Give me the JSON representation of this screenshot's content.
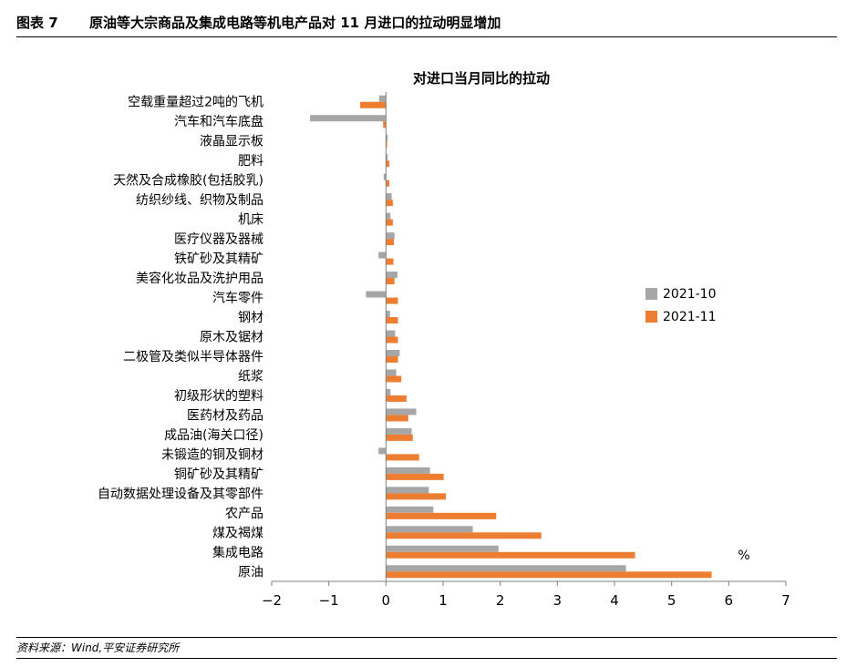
{
  "figure": {
    "number": "图表 7",
    "title": "原油等大宗商品及集成电路等机电产品对 11 月进口的拉动明显增加",
    "source": "资料来源：Wind,平安证券研究所"
  },
  "chart_data": {
    "type": "bar",
    "orientation": "horizontal",
    "title": "对进口当月同比的拉动",
    "unit_label": "%",
    "xlim": [
      -2,
      7
    ],
    "xticks": [
      -2,
      -1,
      0,
      1,
      2,
      3,
      4,
      5,
      6,
      7
    ],
    "xtick_labels": [
      "−2",
      "−1",
      "0",
      "1",
      "2",
      "3",
      "4",
      "5",
      "6",
      "7"
    ],
    "grid": false,
    "legend_position": "right",
    "categories": [
      "空载重量超过2吨的飞机",
      "汽车和汽车底盘",
      "液晶显示板",
      "肥料",
      "天然及合成橡胶(包括胶乳)",
      "纺织纱线、织物及制品",
      "机床",
      "医疗仪器及器械",
      "铁矿砂及其精矿",
      "美容化妆品及洗护用品",
      "汽车零件",
      "钢材",
      "原木及锯材",
      "二极管及类似半导体器件",
      "纸浆",
      "初级形状的塑料",
      "医药材及药品",
      "成品油(海关口径)",
      "未锻造的铜及铜材",
      "铜矿砂及其精矿",
      "自动数据处理设备及其零部件",
      "农产品",
      "煤及褐煤",
      "集成电路",
      "原油"
    ],
    "series": [
      {
        "name": "2021-10",
        "color": "#a6a6a6",
        "values": [
          -0.12,
          -1.33,
          0.03,
          0.03,
          -0.04,
          0.1,
          0.08,
          0.15,
          -0.13,
          0.2,
          -0.35,
          0.07,
          0.16,
          0.24,
          0.18,
          0.08,
          0.53,
          0.45,
          -0.13,
          0.77,
          0.75,
          0.83,
          1.52,
          1.97,
          4.2
        ]
      },
      {
        "name": "2021-11",
        "color": "#ed7d31",
        "values": [
          -0.45,
          -0.05,
          0.02,
          0.06,
          0.06,
          0.12,
          0.12,
          0.14,
          0.13,
          0.15,
          0.21,
          0.21,
          0.21,
          0.21,
          0.27,
          0.36,
          0.39,
          0.47,
          0.58,
          1.01,
          1.05,
          1.93,
          2.72,
          4.36,
          5.7
        ]
      }
    ]
  }
}
